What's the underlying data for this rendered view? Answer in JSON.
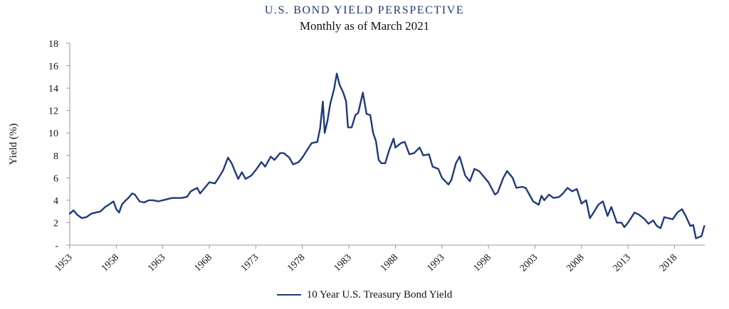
{
  "chart_data": {
    "type": "line",
    "title": "U.S. BOND YIELD PERSPECTIVE",
    "subtitle": "Monthly as of March 2021",
    "xlabel": "",
    "ylabel": "Yield (%)",
    "xlim": [
      1953,
      2021.25
    ],
    "ylim": [
      0,
      18
    ],
    "yticks": [
      0,
      2,
      4,
      6,
      8,
      10,
      12,
      14,
      16,
      18
    ],
    "ytick_labels": [
      "-",
      "2",
      "4",
      "6",
      "8",
      "10",
      "12",
      "14",
      "16",
      "18"
    ],
    "xticks": [
      1953,
      1958,
      1963,
      1968,
      1973,
      1978,
      1983,
      1988,
      1993,
      1998,
      2003,
      2008,
      2013,
      2018
    ],
    "xtick_labels": [
      "1953",
      "1958",
      "1963",
      "1968",
      "1973",
      "1978",
      "1983",
      "1988",
      "1993",
      "1998",
      "2003",
      "2008",
      "2013",
      "2018"
    ],
    "grid": false,
    "legend": "bottom-center",
    "series": [
      {
        "name": "10 Year U.S. Treasury Bond Yield",
        "color": "#1f3a7a",
        "x": [
          1953.0,
          1953.4,
          1953.8,
          1954.3,
          1954.8,
          1955.3,
          1955.8,
          1956.3,
          1956.8,
          1957.2,
          1957.7,
          1958.0,
          1958.3,
          1958.6,
          1958.9,
          1959.3,
          1959.7,
          1960.0,
          1960.5,
          1961.0,
          1961.5,
          1962.0,
          1962.5,
          1963.0,
          1963.5,
          1964.0,
          1964.5,
          1965.0,
          1965.6,
          1966.0,
          1966.7,
          1967.0,
          1967.6,
          1968.0,
          1968.6,
          1969.0,
          1969.5,
          1970.0,
          1970.4,
          1970.8,
          1971.1,
          1971.5,
          1971.9,
          1972.5,
          1973.0,
          1973.6,
          1974.0,
          1974.6,
          1975.0,
          1975.6,
          1976.0,
          1976.6,
          1977.0,
          1977.6,
          1978.0,
          1978.6,
          1979.0,
          1979.6,
          1979.9,
          1980.2,
          1980.4,
          1980.7,
          1981.0,
          1981.4,
          1981.7,
          1982.0,
          1982.4,
          1982.7,
          1982.9,
          1983.3,
          1983.7,
          1984.0,
          1984.5,
          1984.9,
          1985.3,
          1985.6,
          1985.9,
          1986.2,
          1986.5,
          1986.9,
          1987.3,
          1987.8,
          1988.0,
          1988.6,
          1989.0,
          1989.5,
          1990.0,
          1990.6,
          1991.0,
          1991.6,
          1992.0,
          1992.6,
          1993.0,
          1993.7,
          1994.0,
          1994.5,
          1994.9,
          1995.5,
          1996.0,
          1996.5,
          1997.0,
          1997.5,
          1998.0,
          1998.7,
          1999.0,
          1999.6,
          2000.0,
          2000.6,
          2001.0,
          2001.6,
          2002.0,
          2002.8,
          2003.4,
          2003.7,
          2004.0,
          2004.5,
          2005.0,
          2005.6,
          2006.0,
          2006.5,
          2007.0,
          2007.5,
          2008.0,
          2008.5,
          2008.9,
          2009.3,
          2009.8,
          2010.3,
          2010.8,
          2011.2,
          2011.8,
          2012.3,
          2012.6,
          2013.0,
          2013.7,
          2014.2,
          2014.8,
          2015.2,
          2015.7,
          2016.1,
          2016.5,
          2016.9,
          2017.3,
          2017.8,
          2018.3,
          2018.8,
          2019.2,
          2019.7,
          2020.0,
          2020.3,
          2020.6,
          2020.9,
          2021.2
        ],
        "values": [
          2.8,
          3.1,
          2.7,
          2.4,
          2.5,
          2.8,
          2.9,
          3.0,
          3.4,
          3.6,
          3.9,
          3.2,
          2.9,
          3.6,
          3.9,
          4.2,
          4.6,
          4.5,
          3.9,
          3.8,
          4.0,
          4.0,
          3.9,
          4.0,
          4.1,
          4.2,
          4.2,
          4.2,
          4.3,
          4.8,
          5.1,
          4.6,
          5.2,
          5.6,
          5.5,
          6.0,
          6.7,
          7.8,
          7.3,
          6.5,
          5.9,
          6.5,
          5.9,
          6.2,
          6.7,
          7.4,
          7.0,
          7.9,
          7.6,
          8.2,
          8.2,
          7.8,
          7.2,
          7.4,
          7.8,
          8.6,
          9.1,
          9.2,
          10.4,
          12.8,
          10.0,
          11.1,
          12.6,
          13.9,
          15.3,
          14.3,
          13.6,
          12.8,
          10.5,
          10.5,
          11.6,
          11.8,
          13.6,
          11.7,
          11.6,
          10.0,
          9.3,
          7.6,
          7.3,
          7.3,
          8.4,
          9.5,
          8.7,
          9.1,
          9.2,
          8.1,
          8.2,
          8.7,
          8.0,
          8.1,
          7.0,
          6.8,
          6.0,
          5.4,
          5.8,
          7.3,
          7.9,
          6.2,
          5.7,
          6.8,
          6.6,
          6.1,
          5.6,
          4.5,
          4.7,
          6.0,
          6.6,
          6.0,
          5.1,
          5.2,
          5.1,
          3.9,
          3.6,
          4.4,
          4.0,
          4.5,
          4.2,
          4.3,
          4.6,
          5.1,
          4.8,
          5.0,
          3.7,
          4.0,
          2.4,
          2.9,
          3.6,
          3.9,
          2.6,
          3.4,
          2.0,
          2.0,
          1.6,
          2.0,
          2.9,
          2.7,
          2.3,
          1.9,
          2.2,
          1.7,
          1.5,
          2.5,
          2.4,
          2.3,
          2.9,
          3.2,
          2.6,
          1.7,
          1.8,
          0.6,
          0.7,
          0.8,
          1.7
        ]
      }
    ]
  }
}
